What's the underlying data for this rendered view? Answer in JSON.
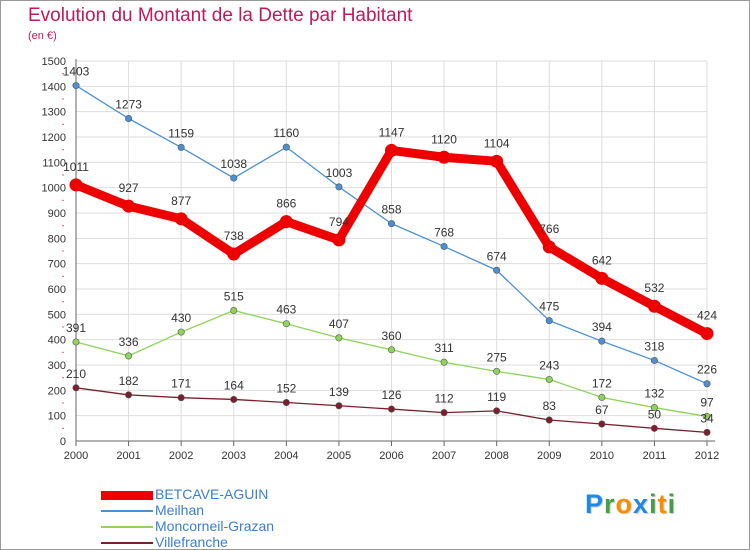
{
  "title": "Evolution du Montant de la Dette par Habitant",
  "subtitle": "(en €)",
  "logo": {
    "letters": [
      {
        "ch": "P",
        "color": "#1e88e5"
      },
      {
        "ch": "r",
        "color": "#43a047"
      },
      {
        "ch": "o",
        "color": "#fb8c00"
      },
      {
        "ch": "x",
        "color": "#1e88e5"
      },
      {
        "ch": "i",
        "color": "#43a047"
      },
      {
        "ch": "t",
        "color": "#fb8c00"
      },
      {
        "ch": "i",
        "color": "#43a047"
      }
    ]
  },
  "chart_data": {
    "type": "line",
    "title": "Evolution du Montant de la Dette par Habitant",
    "subtitle": "(en €)",
    "xlabel": "",
    "ylabel": "",
    "x": [
      "2000",
      "2001",
      "2002",
      "2003",
      "2004",
      "2005",
      "2006",
      "2007",
      "2008",
      "2009",
      "2010",
      "2011",
      "2012"
    ],
    "ylim": [
      0,
      1500
    ],
    "yticks": [
      "0",
      "100",
      "200",
      "300",
      "400",
      "500",
      "600",
      "700",
      "800",
      "900",
      "1000",
      "1100",
      "1200",
      "1300",
      "1400",
      "1500"
    ],
    "grid": true,
    "legend_position": "bottom-left",
    "series": [
      {
        "name": "BETCAVE-AGUIN",
        "color": "#ee0000",
        "values": [
          1011,
          927,
          877,
          738,
          866,
          794,
          1147,
          1120,
          1104,
          766,
          642,
          532,
          424
        ]
      },
      {
        "name": "Meilhan",
        "color": "#4a90d9",
        "values": [
          1403,
          1273,
          1159,
          1038,
          1160,
          1003,
          858,
          768,
          674,
          475,
          394,
          318,
          226
        ]
      },
      {
        "name": "Moncorneil-Grazan",
        "color": "#8fd45a",
        "values": [
          391,
          336,
          430,
          515,
          463,
          407,
          360,
          311,
          275,
          243,
          172,
          132,
          97
        ]
      },
      {
        "name": "Villefranche",
        "color": "#7a1f2b",
        "values": [
          210,
          182,
          171,
          164,
          152,
          139,
          126,
          112,
          119,
          83,
          67,
          50,
          34
        ]
      }
    ]
  }
}
